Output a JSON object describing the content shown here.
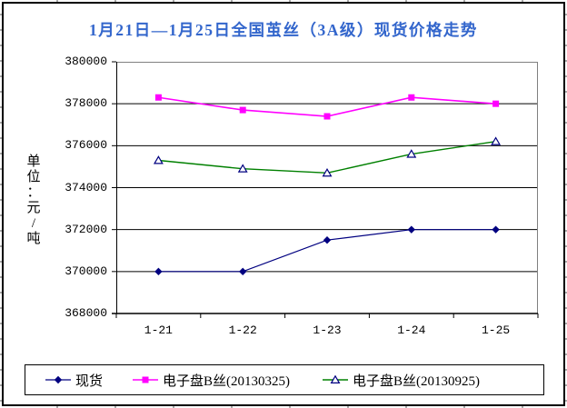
{
  "title": "1月21日—1月25日全国茧丝（3A级）现货价格走势",
  "unit_label": "单\n位\n：\n元\n/\n吨",
  "chart_data": {
    "type": "line",
    "title": "1月21日—1月25日全国茧丝（3A级）现货价格走势",
    "ylabel": "单位：元/吨",
    "xlabel": "",
    "categories": [
      "1-21",
      "1-22",
      "1-23",
      "1-24",
      "1-25"
    ],
    "series": [
      {
        "name": "现货",
        "values": [
          370000,
          370000,
          371500,
          372000,
          372000
        ],
        "color": "#000080",
        "marker": "diamond",
        "marker_color": "#000080",
        "line_width": 1.2
      },
      {
        "name": "电子盘B丝(20130325)",
        "values": [
          378300,
          377700,
          377400,
          378300,
          378000
        ],
        "color": "#FF00FF",
        "marker": "square",
        "marker_color": "#FF00FF",
        "line_width": 1.6
      },
      {
        "name": "电子盘B丝(20130925)",
        "values": [
          375300,
          374900,
          374700,
          375600,
          376200
        ],
        "color": "#008000",
        "marker": "triangle-open",
        "marker_color": "#000080",
        "line_width": 1.4
      }
    ],
    "ylim": [
      368000,
      380000
    ],
    "yticks": [
      380000,
      378000,
      376000,
      374000,
      372000,
      370000,
      368000
    ],
    "grid": true,
    "legend_position": "bottom"
  },
  "colors": {
    "title_text": "#3366CC",
    "grid_line": "#000000",
    "plot_border": "#808080",
    "axis_line": "#000000",
    "background": "#FFFFFF"
  }
}
